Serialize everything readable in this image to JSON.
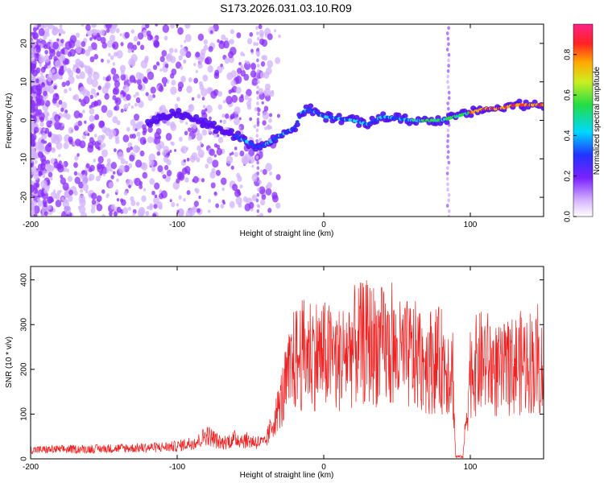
{
  "title": "S173.2026.031.03.10.R09",
  "colors": {
    "snr_line": "#ee2222",
    "spectrogram_low": "#c9a8ff",
    "spectrogram_mid": "#6a1cff",
    "frame": "#000000"
  },
  "chart_data": [
    {
      "type": "heatmap",
      "xlabel": "Height of straight line (km)",
      "ylabel": "Frequency (Hz)",
      "xlim": [
        -200,
        150
      ],
      "ylim": [
        -25,
        25
      ],
      "x_ticks": [
        -200,
        -100,
        0,
        100
      ],
      "y_ticks": [
        20,
        10,
        0,
        -10,
        -20
      ],
      "colorbar": {
        "label": "Normalized spectral amplitude",
        "range": [
          0.0,
          0.95
        ],
        "ticks": [
          "0.0",
          "0.2",
          "0.4",
          "0.6",
          "0.8"
        ]
      },
      "ridge": {
        "x": [
          -120,
          -100,
          -80,
          -60,
          -50,
          -45,
          -38,
          -30,
          -20,
          -15,
          -10,
          0,
          20,
          30,
          40,
          60,
          80,
          90,
          100,
          110,
          120,
          130,
          150
        ],
        "y": [
          -1,
          2,
          -1,
          -4,
          -6,
          -7,
          -6,
          -4,
          -2,
          2,
          3,
          1,
          0,
          -1,
          1,
          0,
          0,
          1,
          2,
          3,
          3,
          4,
          4
        ]
      }
    },
    {
      "type": "line",
      "xlabel": "Height of straight line (km)",
      "ylabel": "SNR (10 * v/v)",
      "xlim": [
        -200,
        150
      ],
      "ylim": [
        0,
        430
      ],
      "x_ticks": [
        -200,
        -100,
        0,
        100
      ],
      "y_ticks": [
        0,
        100,
        200,
        300,
        400
      ],
      "envelope": {
        "x": [
          -200,
          -160,
          -120,
          -100,
          -85,
          -80,
          -70,
          -60,
          -50,
          -40,
          -30,
          -25,
          -20,
          -10,
          0,
          10,
          20,
          30,
          40,
          50,
          60,
          70,
          80,
          88,
          90,
          95,
          100,
          110,
          120,
          130,
          140,
          150
        ],
        "y": [
          20,
          22,
          25,
          28,
          40,
          55,
          35,
          45,
          40,
          35,
          120,
          170,
          220,
          240,
          230,
          220,
          250,
          260,
          250,
          230,
          230,
          220,
          220,
          200,
          5,
          5,
          200,
          220,
          190,
          210,
          220,
          200
        ]
      }
    }
  ]
}
